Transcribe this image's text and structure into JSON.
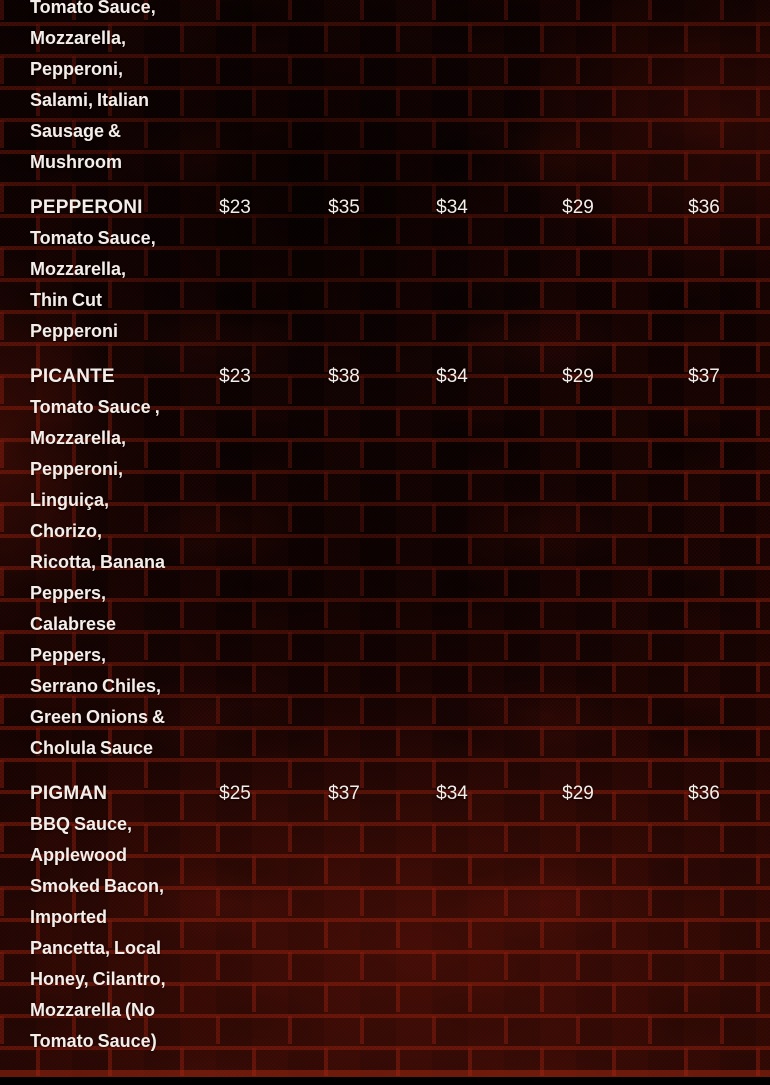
{
  "theme": {
    "text_color": "#f3eeea",
    "mortar_red": "#8c1c0d",
    "background": "#150302"
  },
  "menu": {
    "items": [
      {
        "description_lines": [
          "Tomato Sauce,",
          "Mozzarella,",
          "Pepperoni,",
          "Salami, Italian",
          "Sausage &",
          "Mushroom"
        ],
        "prices": []
      },
      {
        "name": "PEPPERONI",
        "description_lines": [
          "Tomato Sauce,",
          "Mozzarella,",
          "Thin Cut",
          "Pepperoni"
        ],
        "prices": [
          "$23",
          "$35",
          "$34",
          "$29",
          "$36"
        ]
      },
      {
        "name": "PICANTE",
        "description_lines": [
          "Tomato Sauce ,",
          "Mozzarella,",
          "Pepperoni,",
          "Linguiça,",
          "Chorizo,",
          "Ricotta, Banana",
          "Peppers,",
          "Calabrese",
          "Peppers,",
          "Serrano Chiles,",
          "Green Onions &",
          "Cholula Sauce"
        ],
        "prices": [
          "$23",
          "$38",
          "$34",
          "$29",
          "$37"
        ]
      },
      {
        "name": "PIGMAN",
        "description_lines": [
          "BBQ Sauce,",
          "Applewood",
          "Smoked Bacon,",
          "Imported",
          "Pancetta, Local",
          "Honey, Cilantro,",
          "Mozzarella (No",
          "Tomato Sauce)"
        ],
        "prices": [
          "$25",
          "$37",
          "$34",
          "$29",
          "$36"
        ]
      }
    ]
  }
}
